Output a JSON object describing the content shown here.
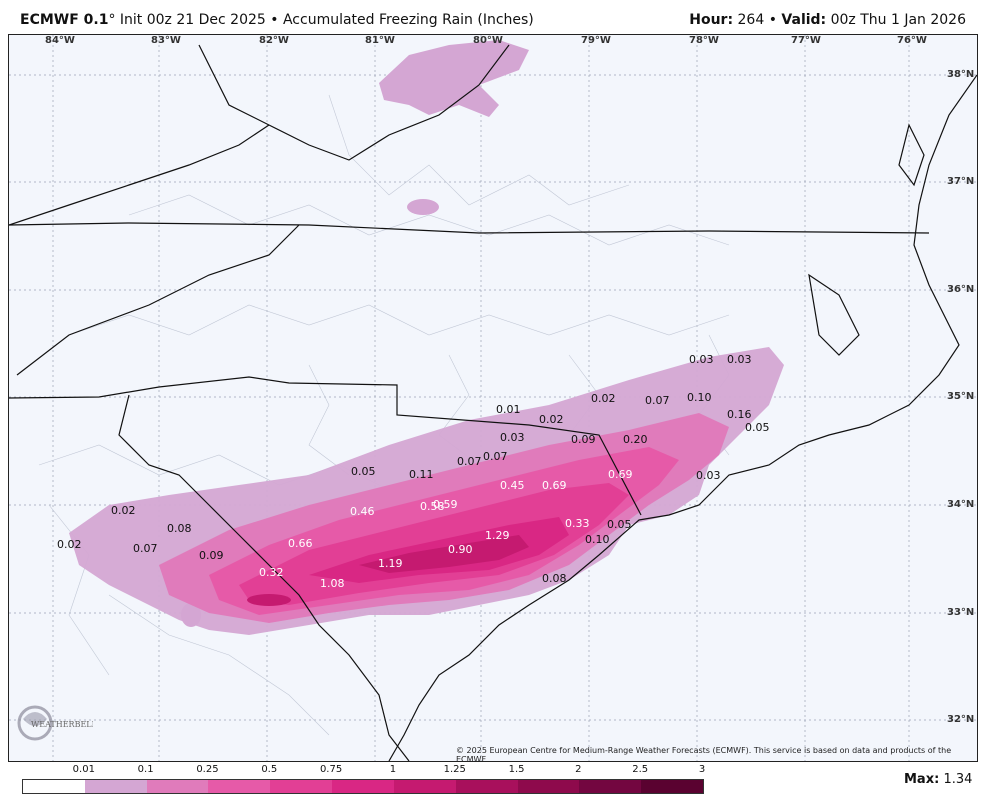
{
  "header": {
    "model": "ECMWF 0.1",
    "degree": "°",
    "init": "Init 00z 21 Dec 2025",
    "bullet": "•",
    "product": "Accumulated Freezing Rain (Inches)",
    "hour_label": "Hour:",
    "hour": "264",
    "valid_label": "Valid:",
    "valid": "00z Thu 1 Jan 2026"
  },
  "longitudes": [
    "84°W",
    "83°W",
    "82°W",
    "81°W",
    "80°W",
    "79°W",
    "78°W",
    "77°W",
    "76°W"
  ],
  "latitudes": [
    "38°N",
    "37°N",
    "36°N",
    "35°N",
    "34°N",
    "33°N",
    "32°N"
  ],
  "values": [
    {
      "text": "0.03",
      "dark": true
    },
    {
      "text": "0.03",
      "dark": true
    },
    {
      "text": "0.02",
      "dark": true
    },
    {
      "text": "0.07",
      "dark": true
    },
    {
      "text": "0.10",
      "dark": true
    },
    {
      "text": "0.16",
      "dark": true
    },
    {
      "text": "0.05",
      "dark": true
    },
    {
      "text": "0.01",
      "dark": true
    },
    {
      "text": "0.02",
      "dark": true
    },
    {
      "text": "0.03",
      "dark": true
    },
    {
      "text": "0.09",
      "dark": true
    },
    {
      "text": "0.20",
      "dark": true
    },
    {
      "text": "0.05",
      "dark": true
    },
    {
      "text": "0.11",
      "dark": true
    },
    {
      "text": "0.07",
      "dark": true
    },
    {
      "text": "0.07",
      "dark": true
    },
    {
      "text": "0.03",
      "dark": true
    },
    {
      "text": "0.45",
      "dark": false
    },
    {
      "text": "0.69",
      "dark": false
    },
    {
      "text": "0.69",
      "dark": false
    },
    {
      "text": "0.46",
      "dark": false
    },
    {
      "text": "0.58",
      "dark": false
    },
    {
      "text": "0.59",
      "dark": false
    },
    {
      "text": "0.02",
      "dark": true
    },
    {
      "text": "0.08",
      "dark": true
    },
    {
      "text": "0.33",
      "dark": false
    },
    {
      "text": "0.05",
      "dark": true
    },
    {
      "text": "0.10",
      "dark": true
    },
    {
      "text": "0.66",
      "dark": false
    },
    {
      "text": "1.29",
      "dark": false
    },
    {
      "text": "0.02",
      "dark": true
    },
    {
      "text": "0.07",
      "dark": true
    },
    {
      "text": "0.09",
      "dark": true
    },
    {
      "text": "0.90",
      "dark": false
    },
    {
      "text": "1.19",
      "dark": false
    },
    {
      "text": "0.32",
      "dark": false
    },
    {
      "text": "0.08",
      "dark": true
    },
    {
      "text": "1.08",
      "dark": false
    }
  ],
  "copyright": "© 2025 European Centre for Medium-Range Weather Forecasts (ECMWF). This service is based on data and products of the ECMWF.",
  "legend": {
    "ticks": [
      "0.01",
      "0.1",
      "0.25",
      "0.5",
      "0.75",
      "1",
      "1.25",
      "1.5",
      "2",
      "2.5",
      "3"
    ],
    "colors": [
      "#ffffff",
      "#d4a6d3",
      "#e07bbb",
      "#e65aa8",
      "#e23f95",
      "#d92784",
      "#c51a70",
      "#a8105c",
      "#8e0a4c",
      "#730640",
      "#5a0230"
    ]
  },
  "max_label": "Max:",
  "max_value": "1.34",
  "logo_text": "WEATHERBELL"
}
